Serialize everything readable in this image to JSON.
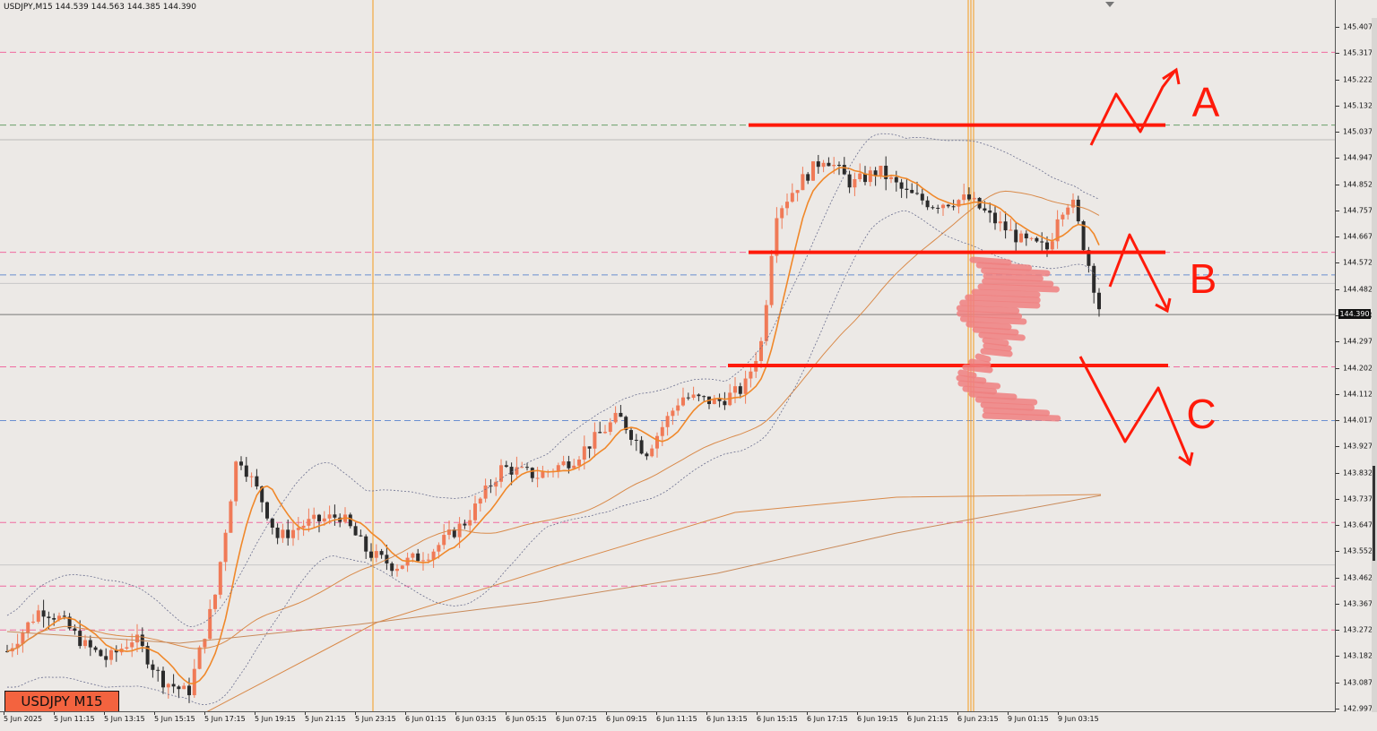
{
  "window": {
    "header": "USDJPY,M15  144.539 144.563 144.385 144.390",
    "symbol_badge": "USDJPY M15",
    "current_price_label": "144.390"
  },
  "price_axis": {
    "min": 142.997,
    "max": 145.407,
    "labels": [
      "145.407",
      "145.317",
      "145.222",
      "145.132",
      "145.037",
      "144.947",
      "144.852",
      "144.757",
      "144.667",
      "144.572",
      "144.482",
      "144.390",
      "144.297",
      "144.202",
      "144.112",
      "144.017",
      "143.927",
      "143.832",
      "143.737",
      "143.647",
      "143.552",
      "143.462",
      "143.367",
      "143.272",
      "143.182",
      "143.087",
      "142.997"
    ]
  },
  "time_axis": {
    "labels": [
      "5 Jun 2025",
      "5 Jun 11:15",
      "5 Jun 13:15",
      "5 Jun 15:15",
      "5 Jun 17:15",
      "5 Jun 19:15",
      "5 Jun 21:15",
      "5 Jun 23:15",
      "6 Jun 01:15",
      "6 Jun 03:15",
      "6 Jun 05:15",
      "6 Jun 07:15",
      "6 Jun 09:15",
      "6 Jun 11:15",
      "6 Jun 13:15",
      "6 Jun 15:15",
      "6 Jun 17:15",
      "6 Jun 19:15",
      "6 Jun 21:15",
      "6 Jun 23:15",
      "9 Jun 01:15",
      "9 Jun 03:15"
    ]
  },
  "colors": {
    "background": "#ece9e6",
    "bull_candle": "#f07a57",
    "bear_candle": "#2b2b2b",
    "ma_fast": "#f0882a",
    "ma_slow": "#d98a4a",
    "band": "#6b6f8f",
    "level_pink": "#f06aa0",
    "level_blue": "#6a8fd0",
    "level_green": "#6aa06a",
    "vertical_line": "#f59a1f",
    "annotation": "#ff1a0a",
    "zone_fill": "#f08080"
  },
  "annotations": {
    "label_a": "A",
    "label_b": "B",
    "label_c": "C"
  },
  "chart_data": {
    "type": "candlestick",
    "symbol": "USDJPY",
    "timeframe": "M15",
    "last": {
      "open": 144.539,
      "high": 144.563,
      "low": 144.385,
      "close": 144.39
    },
    "ylim": [
      142.997,
      145.407
    ],
    "horizontal_levels": [
      {
        "price": 145.317,
        "style": "dashed",
        "color": "pink"
      },
      {
        "price": 145.06,
        "style": "dashed",
        "color": "green"
      },
      {
        "price": 144.61,
        "style": "dashed",
        "color": "pink"
      },
      {
        "price": 144.53,
        "style": "dashed",
        "color": "blue"
      },
      {
        "price": 144.205,
        "style": "dashed",
        "color": "pink"
      },
      {
        "price": 144.015,
        "style": "dashed",
        "color": "blue"
      },
      {
        "price": 143.655,
        "style": "dashed",
        "color": "pink"
      },
      {
        "price": 143.43,
        "style": "dashed",
        "color": "pink"
      },
      {
        "price": 143.275,
        "style": "dashed",
        "color": "pink"
      }
    ],
    "drawn_levels": [
      {
        "name": "A",
        "price": 145.06
      },
      {
        "name": "B",
        "price": 144.61
      },
      {
        "name": "C",
        "price": 144.21
      }
    ]
  }
}
